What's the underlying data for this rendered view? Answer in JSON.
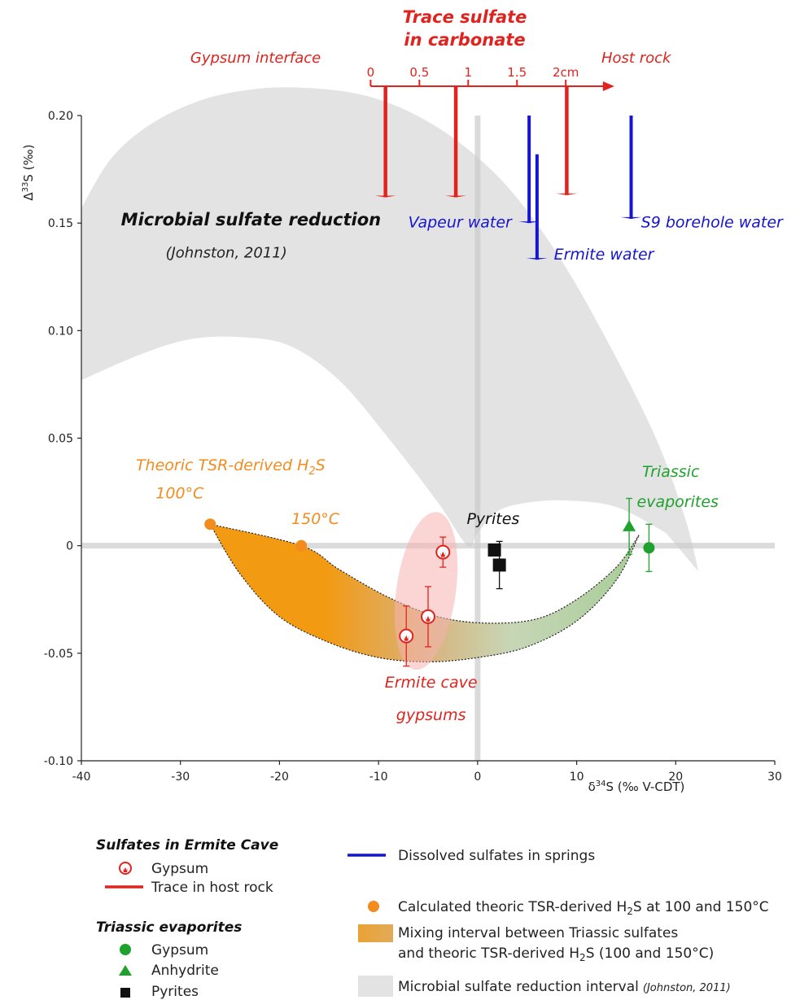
{
  "chart_data": {
    "type": "scatter",
    "xlabel": "δ³⁴S (‰ V-CDT)",
    "ylabel": "Δ³³S (‰)",
    "xlim": [
      -40,
      30
    ],
    "ylim": [
      -0.1,
      0.2
    ],
    "xticks": [
      "-40",
      "-30",
      "-20",
      "-10",
      "0",
      "10",
      "20",
      "30"
    ],
    "yticks": [
      "-0.10",
      "-0.05",
      "0",
      "0.05",
      "0.10",
      "0.15",
      "0.20"
    ],
    "series": [
      {
        "name": "Gypsum",
        "group": "Sulfates in Ermite Cave",
        "marker": "gypsum-icon",
        "color": "#e0231e",
        "points": [
          {
            "x": -7.2,
            "y": -0.042,
            "err": 0.014
          },
          {
            "x": -5.0,
            "y": -0.033,
            "err": 0.014
          },
          {
            "x": -3.5,
            "y": -0.003,
            "err": 0.007
          }
        ]
      },
      {
        "name": "Gypsum",
        "group": "Triassic evaporites",
        "marker": "circle",
        "color": "#1fa12e",
        "points": [
          {
            "x": 17.3,
            "y": -0.001,
            "err": 0.011
          }
        ]
      },
      {
        "name": "Anhydrite",
        "group": "Triassic evaporites",
        "marker": "triangle",
        "color": "#1fa12e",
        "points": [
          {
            "x": 15.3,
            "y": 0.009,
            "err": 0.013
          }
        ]
      },
      {
        "name": "Pyrites",
        "marker": "square",
        "color": "#111111",
        "points": [
          {
            "x": 1.7,
            "y": -0.002,
            "err": 0.0
          },
          {
            "x": 2.2,
            "y": -0.009,
            "err": 0.011
          }
        ]
      },
      {
        "name": "Calculated theoric TSR-derived H2S at 100 and 150°C",
        "marker": "circle",
        "color": "#f28c1e",
        "points": [
          {
            "x": -27,
            "y": 0.01
          },
          {
            "x": -17.8,
            "y": 0.0
          }
        ]
      }
    ],
    "dissolved_sulfates": [
      {
        "label": "Vapeur water",
        "x": 5.2,
        "y_from": 0.2,
        "y_to": 0.15
      },
      {
        "label": "Ermite water",
        "x": 6.0,
        "y_from": 0.182,
        "y_to": 0.133
      },
      {
        "label": "S9 borehole water",
        "x": 15.5,
        "y_from": 0.2,
        "y_to": 0.152
      }
    ],
    "trace_arrows": [
      {
        "x": -9.3,
        "y_from": 0.214,
        "y_to": 0.162
      },
      {
        "x": -2.2,
        "y_from": 0.214,
        "y_to": 0.162
      },
      {
        "x": 9.0,
        "y_from": 0.214,
        "y_to": 0.163
      }
    ],
    "trace_scale": {
      "title_line1": "Trace sulfate",
      "title_line2": "in carbonate",
      "left_label": "Gypsum interface",
      "right_label": "Host rock",
      "ticks": [
        "0",
        "0.5",
        "1",
        "1.5",
        "2cm"
      ],
      "tick_positions_cm": [
        0,
        0.5,
        1,
        1.5,
        2
      ],
      "x_at_0cm": -10.8,
      "x_at_2cm": 8.9,
      "x_arrow_end": 13.8
    },
    "msr_envelope": {
      "upper": [
        [
          -40,
          0.157
        ],
        [
          -37,
          0.18
        ],
        [
          -33,
          0.196
        ],
        [
          -28,
          0.207
        ],
        [
          -23,
          0.212
        ],
        [
          -18,
          0.213
        ],
        [
          -12,
          0.21
        ],
        [
          -7,
          0.202
        ],
        [
          -2,
          0.188
        ],
        [
          3,
          0.167
        ],
        [
          8,
          0.136
        ],
        [
          13,
          0.096
        ],
        [
          18,
          0.05
        ],
        [
          21,
          0.012
        ],
        [
          22.3,
          -0.012
        ]
      ],
      "lower": [
        [
          22.3,
          -0.012
        ],
        [
          19,
          0.006
        ],
        [
          14,
          0.018
        ],
        [
          9,
          0.021
        ],
        [
          5,
          0.02
        ],
        [
          2,
          0.016
        ],
        [
          0,
          0.006
        ],
        [
          -1,
          0.0
        ],
        [
          -4,
          0.02
        ],
        [
          -9,
          0.05
        ],
        [
          -14,
          0.077
        ],
        [
          -19,
          0.093
        ],
        [
          -24,
          0.097
        ],
        [
          -29,
          0.096
        ],
        [
          -34,
          0.089
        ],
        [
          -40,
          0.077
        ]
      ]
    },
    "mixing_interval": {
      "upper": [
        [
          -27,
          0.01
        ],
        [
          -17.8,
          0.0
        ],
        [
          -14,
          -0.011
        ],
        [
          -9,
          -0.024
        ],
        [
          -4,
          -0.033
        ],
        [
          1,
          -0.036
        ],
        [
          6,
          -0.034
        ],
        [
          10,
          -0.025
        ],
        [
          14,
          -0.01
        ],
        [
          16.3,
          0.005
        ]
      ],
      "lower": [
        [
          16.3,
          0.005
        ],
        [
          14,
          -0.016
        ],
        [
          10,
          -0.035
        ],
        [
          5,
          -0.047
        ],
        [
          0,
          -0.052
        ],
        [
          -5,
          -0.054
        ],
        [
          -10,
          -0.052
        ],
        [
          -15,
          -0.045
        ],
        [
          -20,
          -0.033
        ],
        [
          -24,
          -0.013
        ],
        [
          -27,
          0.01
        ]
      ]
    },
    "ermite_ellipse": {
      "cx": -5.2,
      "cy": -0.021,
      "rx": 3.0,
      "ry": 0.037,
      "rotate_deg": 8
    },
    "annotations": {
      "msr_title": "Microbial sulfate reduction",
      "msr_ref": "(Johnston, 2011)",
      "tsr_title_pre": "Theoric TSR-derived H",
      "tsr_title_sub": "2",
      "tsr_title_post": "S",
      "t100": "100°C",
      "t150": "150°C",
      "pyrites": "Pyrites",
      "triassic_line1": "Triassic",
      "triassic_line2": "evaporites",
      "ermite_line1": "Ermite cave",
      "ermite_line2": "gypsums"
    },
    "legend": {
      "sulfates_title": "Sulfates in Ermite Cave",
      "gypsum_label": "Gypsum",
      "trace_label": "Trace in host rock",
      "triassic_title": "Triassic evaporites",
      "tri_gypsum_label": "Gypsum",
      "anhydrite_label": "Anhydrite",
      "pyrites_label": "Pyrites",
      "dissolved_label": "Dissolved sulfates in springs",
      "calc_pre": "Calculated theoric TSR-derived H",
      "calc_sub": "2",
      "calc_post": "S at 100 and 150°C",
      "mixing_line1": "Mixing interval between Triassic sulfates",
      "mixing_line2_pre": "and theoric TSR-derived H",
      "mixing_line2_sub": "2",
      "mixing_line2_post": "S (100 and 150°C)",
      "msr_pre": "Microbial sulfate reduction interval",
      "msr_ref": "(Johnston, 2011)"
    },
    "colors": {
      "red": "#e0231e",
      "blue": "#1414d2",
      "green": "#1fa12e",
      "orange": "#f28c1e",
      "grey_area": "#e3e3e3",
      "axis_line": "#cccccc",
      "text": "#111111"
    }
  }
}
